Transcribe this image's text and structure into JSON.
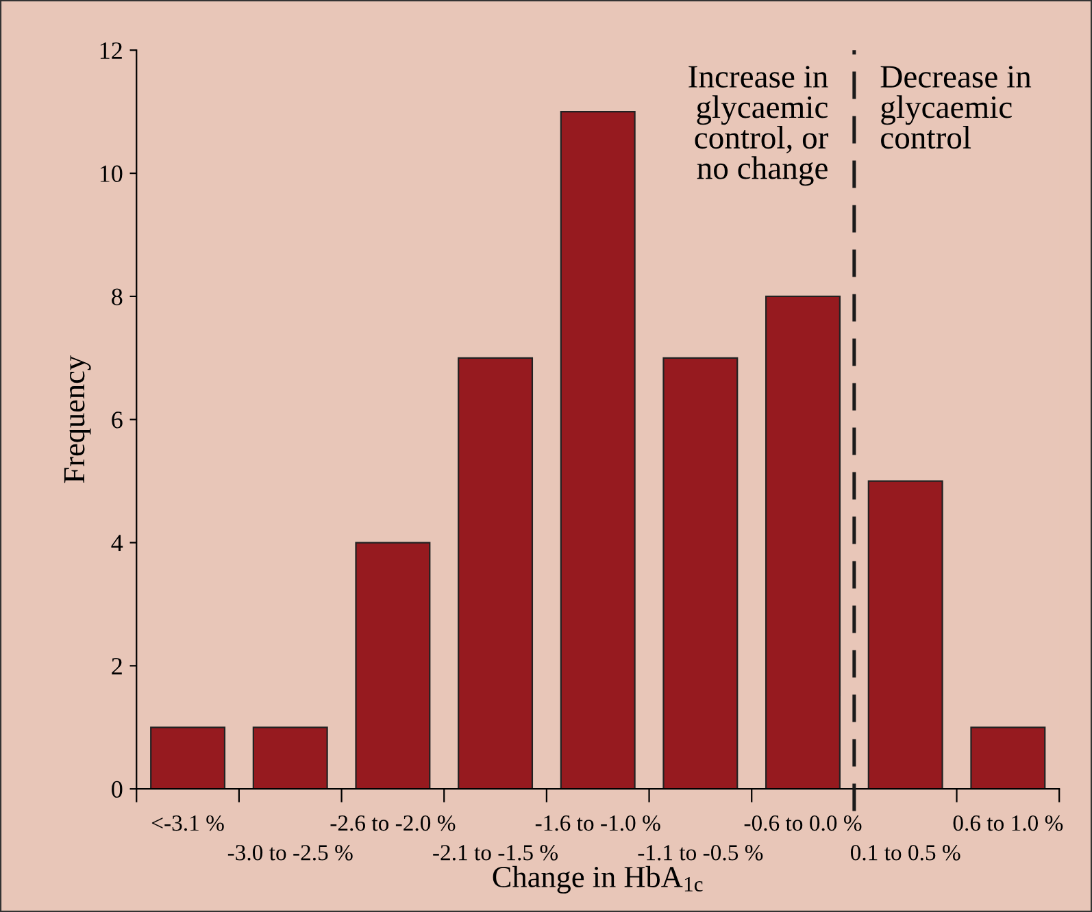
{
  "chart_data": {
    "type": "bar",
    "categories": [
      "<-3.1 %",
      "-3.0 to -2.5 %",
      "-2.6 to -2.0 %",
      "-2.1 to -1.5 %",
      "-1.6 to -1.0 %",
      "-1.1 to -0.5 %",
      "-0.6 to 0.0 %",
      "0.1 to 0.5 %",
      "0.6 to 1.0 %"
    ],
    "values": [
      1,
      1,
      4,
      7,
      11,
      7,
      8,
      5,
      1
    ],
    "color": "#961a1f",
    "xlabel": "Change in HbA$_{1c}$",
    "ylabel": "Frequency",
    "ylim": [
      0,
      12
    ],
    "yticks": [
      0,
      2,
      4,
      6,
      8,
      10,
      12
    ],
    "annotations": [
      "Increase in\nglycaemic\ncontrol, or\nno change",
      "Decrease in\nglycaemic\ncontrol"
    ],
    "grid": false,
    "legend": false
  }
}
